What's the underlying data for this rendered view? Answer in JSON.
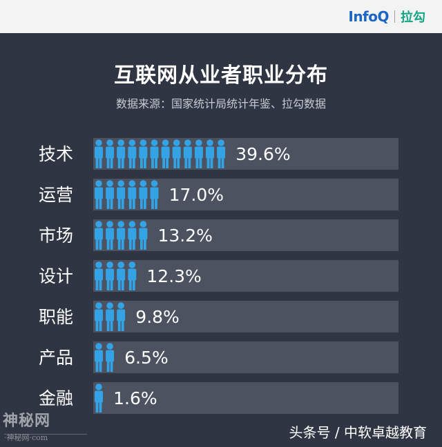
{
  "header": {
    "brand_infoq": "InfoQ",
    "brand_lagou": "拉勾"
  },
  "chart_data": {
    "type": "bar",
    "title": "互联网从业者职业分布",
    "subtitle": "数据来源：国家统计局统计年鉴、拉勾数据",
    "categories": [
      "技术",
      "运营",
      "市场",
      "设计",
      "职能",
      "产品",
      "金融"
    ],
    "values": [
      39.6,
      17.0,
      13.2,
      12.3,
      9.8,
      6.5,
      1.6
    ],
    "value_labels": [
      "39.6%",
      "17.0%",
      "13.2%",
      "12.3%",
      "9.8%",
      "6.5%",
      "1.6%"
    ],
    "icon_counts": [
      12,
      6,
      5,
      4,
      3,
      2,
      1
    ],
    "orientation": "horizontal",
    "unit": "%",
    "colors": {
      "background": "#2f3542",
      "track": "#4c5260",
      "icon": "#34a3e6",
      "text": "#ffffff"
    }
  },
  "footer": {
    "watermark": "神秘网",
    "watermark_sub": "·神秘网·com",
    "credit": "头条号 / 中软卓越教育"
  }
}
